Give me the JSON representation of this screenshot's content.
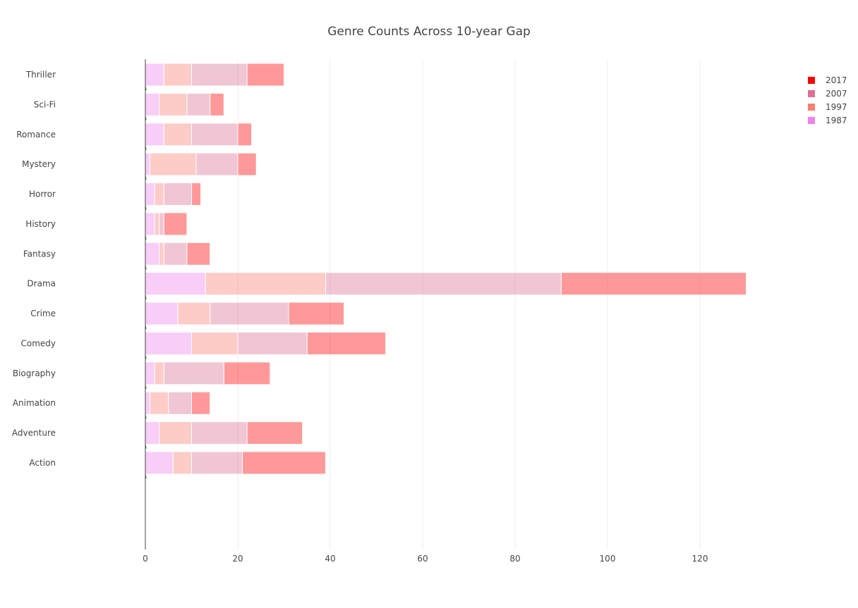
{
  "chart_data": {
    "type": "bar",
    "orientation": "horizontal",
    "barmode": "stack",
    "title": "Genre Counts Across 10-year Gap",
    "xlabel": "",
    "ylabel": "",
    "categories": [
      "Action",
      "Adventure",
      "Animation",
      "Biography",
      "Comedy",
      "Crime",
      "Drama",
      "Fantasy",
      "History",
      "Horror",
      "Mystery",
      "Romance",
      "Sci-Fi",
      "Thriller"
    ],
    "x_ticks": [
      0,
      20,
      40,
      60,
      80,
      100,
      120
    ],
    "xlim": [
      0,
      140
    ],
    "grid": true,
    "legend": "top-right",
    "series": [
      {
        "name": "1987",
        "color": "#ee82ee",
        "opacity": 0.4,
        "values": [
          6,
          3,
          1,
          2,
          10,
          7,
          13,
          3,
          2,
          2,
          1,
          4,
          3,
          4
        ]
      },
      {
        "name": "1997",
        "color": "#fa8072",
        "opacity": 0.4,
        "values": [
          4,
          7,
          4,
          2,
          10,
          7,
          26,
          1,
          1,
          2,
          10,
          6,
          6,
          6
        ]
      },
      {
        "name": "2007",
        "color": "#db7093",
        "opacity": 0.4,
        "values": [
          11,
          12,
          5,
          13,
          15,
          17,
          51,
          5,
          1,
          6,
          9,
          10,
          5,
          12
        ]
      },
      {
        "name": "2017",
        "color": "#ff0000",
        "opacity": 0.4,
        "values": [
          18,
          12,
          4,
          10,
          17,
          12,
          40,
          5,
          5,
          2,
          4,
          3,
          3,
          8
        ]
      }
    ],
    "legend_order": [
      "2017",
      "2007",
      "1997",
      "1987"
    ],
    "legend_swatch_colors": {
      "2017": "#ff0000",
      "2007": "#db7093",
      "1997": "#fa8072",
      "1987": "#ee82ee"
    }
  }
}
